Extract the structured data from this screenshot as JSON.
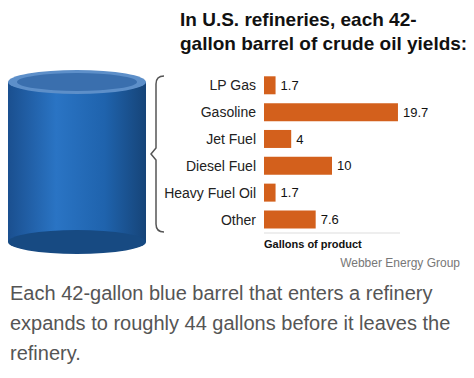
{
  "chart_data": {
    "type": "bar",
    "orientation": "horizontal",
    "title": "In U.S. refineries, each 42-gallon barrel of crude oil yields:",
    "categories": [
      "LP Gas",
      "Gasoline",
      "Jet Fuel",
      "Diesel Fuel",
      "Heavy Fuel Oil",
      "Other"
    ],
    "values": [
      1.7,
      19.7,
      4,
      10,
      1.7,
      7.6
    ],
    "color": "#d3601c",
    "xlim": [
      0,
      20
    ],
    "xlabel": "Gallons of product",
    "data_labels": true,
    "tick_labels": "y",
    "grid": false,
    "source": "Webber Energy Group",
    "caption": "Each 42-gallon blue barrel that enters a refinery expands to roughly 44 gallons before it leaves the refinery."
  }
}
